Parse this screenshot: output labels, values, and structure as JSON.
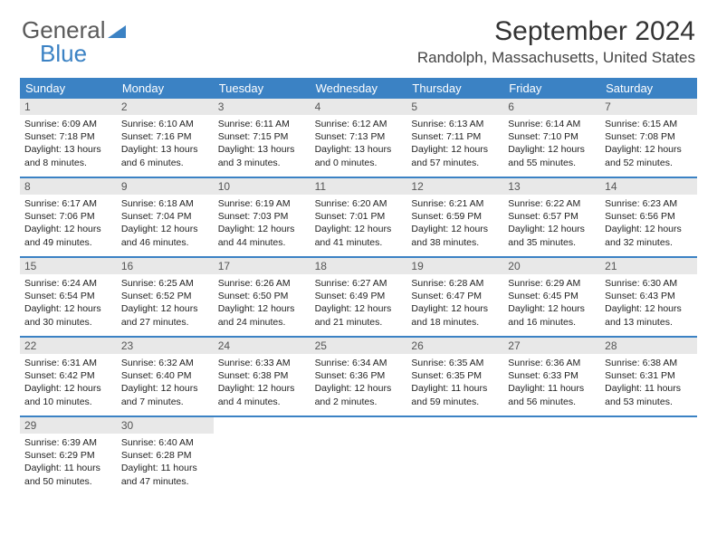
{
  "logo": {
    "part1": "General",
    "part2": "Blue"
  },
  "title": "September 2024",
  "location": "Randolph, Massachusetts, United States",
  "colors": {
    "header_bg": "#3b82c4",
    "daynum_bg": "#e8e8e8",
    "border": "#3b82c4",
    "text": "#222222",
    "logo_gray": "#5a5a5a",
    "logo_blue": "#3b82c4"
  },
  "day_names": [
    "Sunday",
    "Monday",
    "Tuesday",
    "Wednesday",
    "Thursday",
    "Friday",
    "Saturday"
  ],
  "weeks": [
    [
      {
        "day": "1",
        "sunrise": "Sunrise: 6:09 AM",
        "sunset": "Sunset: 7:18 PM",
        "daylight1": "Daylight: 13 hours",
        "daylight2": "and 8 minutes."
      },
      {
        "day": "2",
        "sunrise": "Sunrise: 6:10 AM",
        "sunset": "Sunset: 7:16 PM",
        "daylight1": "Daylight: 13 hours",
        "daylight2": "and 6 minutes."
      },
      {
        "day": "3",
        "sunrise": "Sunrise: 6:11 AM",
        "sunset": "Sunset: 7:15 PM",
        "daylight1": "Daylight: 13 hours",
        "daylight2": "and 3 minutes."
      },
      {
        "day": "4",
        "sunrise": "Sunrise: 6:12 AM",
        "sunset": "Sunset: 7:13 PM",
        "daylight1": "Daylight: 13 hours",
        "daylight2": "and 0 minutes."
      },
      {
        "day": "5",
        "sunrise": "Sunrise: 6:13 AM",
        "sunset": "Sunset: 7:11 PM",
        "daylight1": "Daylight: 12 hours",
        "daylight2": "and 57 minutes."
      },
      {
        "day": "6",
        "sunrise": "Sunrise: 6:14 AM",
        "sunset": "Sunset: 7:10 PM",
        "daylight1": "Daylight: 12 hours",
        "daylight2": "and 55 minutes."
      },
      {
        "day": "7",
        "sunrise": "Sunrise: 6:15 AM",
        "sunset": "Sunset: 7:08 PM",
        "daylight1": "Daylight: 12 hours",
        "daylight2": "and 52 minutes."
      }
    ],
    [
      {
        "day": "8",
        "sunrise": "Sunrise: 6:17 AM",
        "sunset": "Sunset: 7:06 PM",
        "daylight1": "Daylight: 12 hours",
        "daylight2": "and 49 minutes."
      },
      {
        "day": "9",
        "sunrise": "Sunrise: 6:18 AM",
        "sunset": "Sunset: 7:04 PM",
        "daylight1": "Daylight: 12 hours",
        "daylight2": "and 46 minutes."
      },
      {
        "day": "10",
        "sunrise": "Sunrise: 6:19 AM",
        "sunset": "Sunset: 7:03 PM",
        "daylight1": "Daylight: 12 hours",
        "daylight2": "and 44 minutes."
      },
      {
        "day": "11",
        "sunrise": "Sunrise: 6:20 AM",
        "sunset": "Sunset: 7:01 PM",
        "daylight1": "Daylight: 12 hours",
        "daylight2": "and 41 minutes."
      },
      {
        "day": "12",
        "sunrise": "Sunrise: 6:21 AM",
        "sunset": "Sunset: 6:59 PM",
        "daylight1": "Daylight: 12 hours",
        "daylight2": "and 38 minutes."
      },
      {
        "day": "13",
        "sunrise": "Sunrise: 6:22 AM",
        "sunset": "Sunset: 6:57 PM",
        "daylight1": "Daylight: 12 hours",
        "daylight2": "and 35 minutes."
      },
      {
        "day": "14",
        "sunrise": "Sunrise: 6:23 AM",
        "sunset": "Sunset: 6:56 PM",
        "daylight1": "Daylight: 12 hours",
        "daylight2": "and 32 minutes."
      }
    ],
    [
      {
        "day": "15",
        "sunrise": "Sunrise: 6:24 AM",
        "sunset": "Sunset: 6:54 PM",
        "daylight1": "Daylight: 12 hours",
        "daylight2": "and 30 minutes."
      },
      {
        "day": "16",
        "sunrise": "Sunrise: 6:25 AM",
        "sunset": "Sunset: 6:52 PM",
        "daylight1": "Daylight: 12 hours",
        "daylight2": "and 27 minutes."
      },
      {
        "day": "17",
        "sunrise": "Sunrise: 6:26 AM",
        "sunset": "Sunset: 6:50 PM",
        "daylight1": "Daylight: 12 hours",
        "daylight2": "and 24 minutes."
      },
      {
        "day": "18",
        "sunrise": "Sunrise: 6:27 AM",
        "sunset": "Sunset: 6:49 PM",
        "daylight1": "Daylight: 12 hours",
        "daylight2": "and 21 minutes."
      },
      {
        "day": "19",
        "sunrise": "Sunrise: 6:28 AM",
        "sunset": "Sunset: 6:47 PM",
        "daylight1": "Daylight: 12 hours",
        "daylight2": "and 18 minutes."
      },
      {
        "day": "20",
        "sunrise": "Sunrise: 6:29 AM",
        "sunset": "Sunset: 6:45 PM",
        "daylight1": "Daylight: 12 hours",
        "daylight2": "and 16 minutes."
      },
      {
        "day": "21",
        "sunrise": "Sunrise: 6:30 AM",
        "sunset": "Sunset: 6:43 PM",
        "daylight1": "Daylight: 12 hours",
        "daylight2": "and 13 minutes."
      }
    ],
    [
      {
        "day": "22",
        "sunrise": "Sunrise: 6:31 AM",
        "sunset": "Sunset: 6:42 PM",
        "daylight1": "Daylight: 12 hours",
        "daylight2": "and 10 minutes."
      },
      {
        "day": "23",
        "sunrise": "Sunrise: 6:32 AM",
        "sunset": "Sunset: 6:40 PM",
        "daylight1": "Daylight: 12 hours",
        "daylight2": "and 7 minutes."
      },
      {
        "day": "24",
        "sunrise": "Sunrise: 6:33 AM",
        "sunset": "Sunset: 6:38 PM",
        "daylight1": "Daylight: 12 hours",
        "daylight2": "and 4 minutes."
      },
      {
        "day": "25",
        "sunrise": "Sunrise: 6:34 AM",
        "sunset": "Sunset: 6:36 PM",
        "daylight1": "Daylight: 12 hours",
        "daylight2": "and 2 minutes."
      },
      {
        "day": "26",
        "sunrise": "Sunrise: 6:35 AM",
        "sunset": "Sunset: 6:35 PM",
        "daylight1": "Daylight: 11 hours",
        "daylight2": "and 59 minutes."
      },
      {
        "day": "27",
        "sunrise": "Sunrise: 6:36 AM",
        "sunset": "Sunset: 6:33 PM",
        "daylight1": "Daylight: 11 hours",
        "daylight2": "and 56 minutes."
      },
      {
        "day": "28",
        "sunrise": "Sunrise: 6:38 AM",
        "sunset": "Sunset: 6:31 PM",
        "daylight1": "Daylight: 11 hours",
        "daylight2": "and 53 minutes."
      }
    ],
    [
      {
        "day": "29",
        "sunrise": "Sunrise: 6:39 AM",
        "sunset": "Sunset: 6:29 PM",
        "daylight1": "Daylight: 11 hours",
        "daylight2": "and 50 minutes."
      },
      {
        "day": "30",
        "sunrise": "Sunrise: 6:40 AM",
        "sunset": "Sunset: 6:28 PM",
        "daylight1": "Daylight: 11 hours",
        "daylight2": "and 47 minutes."
      },
      null,
      null,
      null,
      null,
      null
    ]
  ]
}
